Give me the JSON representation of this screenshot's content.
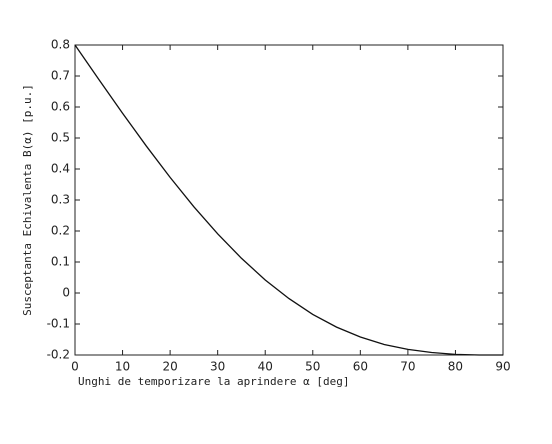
{
  "chart_data": {
    "type": "line",
    "xlabel": "Unghi de temporizare la aprindere α [deg]",
    "ylabel": "Susceptanta Echivalenta B(α) [p.u.]",
    "x": [
      0,
      5,
      10,
      15,
      20,
      25,
      30,
      35,
      40,
      45,
      50,
      55,
      60,
      65,
      70,
      75,
      80,
      85,
      90
    ],
    "series": [
      {
        "color": "#111111",
        "values": [
          0.8,
          0.689,
          0.58,
          0.474,
          0.373,
          0.278,
          0.191,
          0.112,
          0.042,
          -0.018,
          -0.069,
          -0.11,
          -0.142,
          -0.166,
          -0.182,
          -0.192,
          -0.198,
          -0.2,
          -0.2
        ]
      }
    ],
    "xlim": [
      0,
      90
    ],
    "xticks": [
      0,
      10,
      20,
      30,
      40,
      50,
      60,
      70,
      80,
      90
    ],
    "ylim": [
      -0.2,
      0.8
    ],
    "yticks": [
      -0.2,
      -0.1,
      0,
      0.1,
      0.2,
      0.3,
      0.4,
      0.5,
      0.6,
      0.7,
      0.8
    ]
  }
}
